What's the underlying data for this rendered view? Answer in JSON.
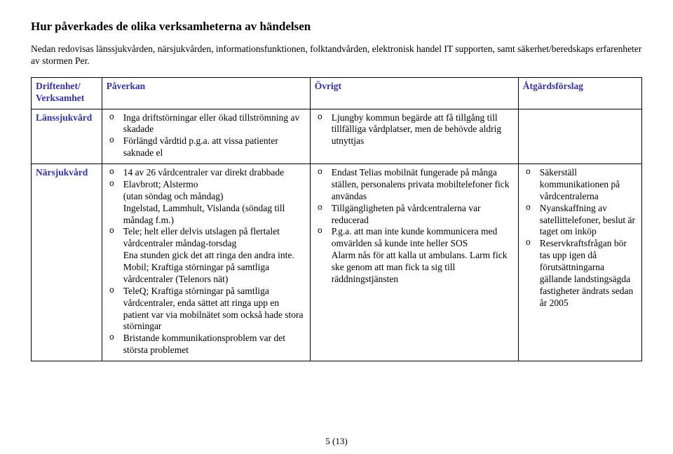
{
  "title": "Hur påverkades de olika verksamheterna av händelsen",
  "intro": "Nedan redovisas länssjukvården, närsjukvården, informationsfunktionen, folktandvården, elektronisk handel IT supporten, samt säkerhet/beredskaps erfarenheter av stormen Per.",
  "header_color": "#333399",
  "table": {
    "headers": {
      "col1": "Driftenhet/\nVerksamhet",
      "col2": "Påverkan",
      "col3": "Övrigt",
      "col4": "Åtgärdsförslag"
    },
    "rows": [
      {
        "label": "Länssjukvård",
        "paverkan": [
          "Inga driftstörningar eller ökad tillströmning av skadade",
          "Förlängd vårdtid p.g.a. att vissa patienter saknade el"
        ],
        "ovrigt": [
          "Ljungby kommun begärde att få tillgång till tillfälliga vårdplatser, men de behövde aldrig utnyttjas"
        ],
        "atgard": []
      },
      {
        "label": "Närsjukvård",
        "paverkan": [
          "14 av 26 vårdcentraler var direkt drabbade",
          "Elavbrott; Alstermo\n(utan söndag och måndag)\nIngelstad, Lammhult, Vislanda (söndag till måndag f.m.)",
          "Tele; helt eller delvis utslagen på flertalet vårdcentraler måndag-torsdag\nEna stunden gick det att ringa den andra inte.\nMobil; Kraftiga störningar på samtliga vårdcentraler (Telenors nät)",
          "TeleQ; Kraftiga störningar på samtliga vårdcentraler, enda sättet att ringa upp en patient var via mobilnätet som också hade stora störningar",
          "Bristande kommunikationsproblem var det största problemet"
        ],
        "ovrigt": [
          "Endast Telias mobilnät fungerade på många ställen, personalens privata mobiltelefoner fick användas",
          "Tillgängligheten på vårdcentralerna var reducerad",
          "P.g.a. att man inte kunde kommunicera med omvärlden så kunde inte heller SOS\nAlarm nås för att kalla ut ambulans. Larm fick ske genom att man fick ta sig till räddningstjänsten"
        ],
        "atgard": [
          "Säkerställ kommunikationen på vårdcentralerna",
          "Nyanskaffning av satellittelefoner, beslut är taget om inköp",
          "Reservkraftsfrågan bör tas upp igen då förutsättningarna gällande landstingsägda fastigheter ändrats sedan år 2005"
        ]
      }
    ]
  },
  "pagenum": "5 (13)"
}
